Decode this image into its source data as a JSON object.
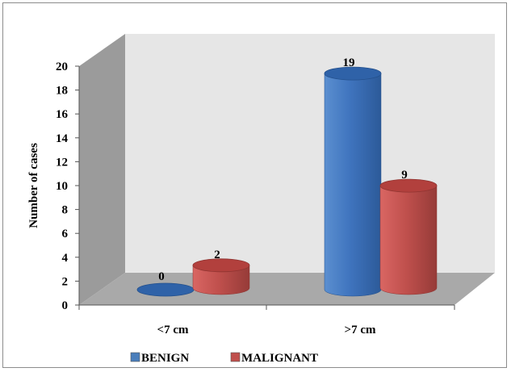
{
  "chart_data": {
    "type": "bar",
    "categories": [
      "<7 cm",
      ">7 cm"
    ],
    "series": [
      {
        "name": "BENIGN",
        "values": [
          0,
          19
        ],
        "color": "#4a7ebb"
      },
      {
        "name": "MALIGNANT",
        "values": [
          2,
          9
        ],
        "color": "#c0504d"
      }
    ],
    "ylabel": "Number of cases",
    "xlabel": "",
    "ylim": [
      0,
      20
    ],
    "y_ticks": [
      0,
      2,
      4,
      6,
      8,
      10,
      12,
      14,
      16,
      18,
      20
    ],
    "grid": false,
    "legend_position": "bottom",
    "style": "3d-cylinder",
    "wall_color": "#e6e6e6",
    "side_wall_color": "#9a9a9a",
    "floor_color": "#a6a6a6"
  }
}
